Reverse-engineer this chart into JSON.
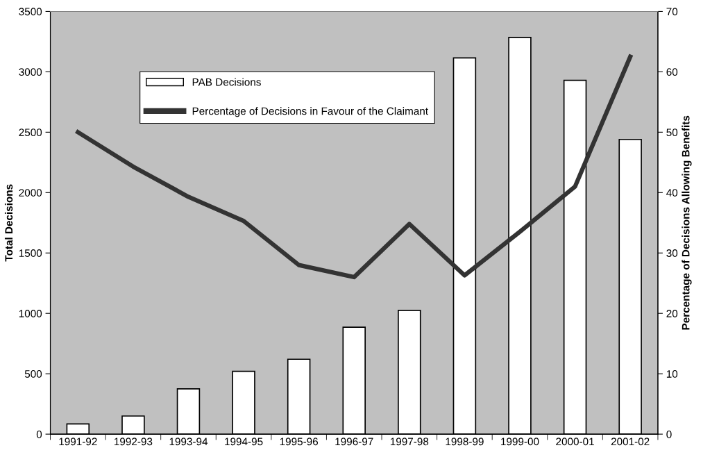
{
  "chart_data": {
    "type": "bar",
    "categories": [
      "1991-92",
      "1992-93",
      "1993-94",
      "1994-95",
      "1995-96",
      "1996-97",
      "1997-98",
      "1998-99",
      "1999-00",
      "2000-01",
      "2001-02"
    ],
    "ylabel": "Total Decisions",
    "y2label": "Percentage of Decisions Allowing Benefits",
    "series": [
      {
        "name": "PAB Decisions",
        "color": "#ffffff",
        "values": [
          85,
          150,
          375,
          520,
          620,
          885,
          1025,
          3115,
          3285,
          2930,
          2440
        ]
      },
      {
        "name": "Percentage of Decisions in Favour of the Claimant",
        "type": "line",
        "axis": "y2",
        "color": "#333333",
        "values": [
          50,
          44.3,
          39.3,
          35.3,
          28,
          26,
          34.8,
          26.3,
          33.5,
          41,
          62.5
        ]
      }
    ],
    "ylim": [
      0,
      3500
    ],
    "yticks": [
      0,
      500,
      1000,
      1500,
      2000,
      2500,
      3000,
      3500
    ],
    "y2lim": [
      0,
      70
    ],
    "y2ticks": [
      0,
      10,
      20,
      30,
      40,
      50,
      60,
      70
    ],
    "grid": false,
    "legend": "top center",
    "marker": "none",
    "line_style": "solid"
  }
}
